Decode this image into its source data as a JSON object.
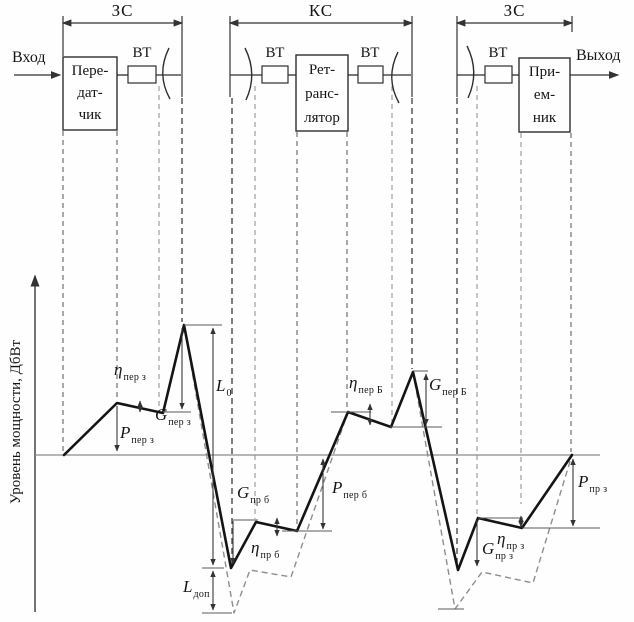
{
  "diagram": {
    "sections": {
      "left": "ЗС",
      "middle": "КС",
      "right": "ЗС"
    },
    "io": {
      "input": "Вход",
      "output": "Выход"
    },
    "waveguide_label": "ВТ",
    "blocks": {
      "transmitter": {
        "lines": [
          "Пере-",
          "дат-",
          "чик"
        ]
      },
      "repeater": {
        "lines": [
          "Рет-",
          "ранс-",
          "лятор"
        ]
      },
      "receiver": {
        "lines": [
          "При-",
          "ем-",
          "ник"
        ]
      }
    }
  },
  "chart": {
    "y_axis_label": "Уровень мощности, ДбВт",
    "labels": {
      "eta_per_z": {
        "main": "η",
        "sub": "пер з"
      },
      "p_per_z": {
        "main": "P",
        "sub": "пер з"
      },
      "g_per_z": {
        "main": "G",
        "sub": "пер з"
      },
      "l_0": {
        "main": "L",
        "sub": "0"
      },
      "l_dop": {
        "main": "L",
        "sub": "доп"
      },
      "g_pr_b": {
        "main": "G",
        "sub": "пр б"
      },
      "eta_pr_b": {
        "main": "η",
        "sub": "пр б"
      },
      "p_per_b": {
        "main": "P",
        "sub": "пер б"
      },
      "eta_per_B": {
        "main": "η",
        "sub": "пер Б"
      },
      "g_per_B": {
        "main": "G",
        "sub": "пер Б"
      },
      "g_pr_z": {
        "main": "G",
        "sub": "пр з"
      },
      "eta_pr_z": {
        "main": "η",
        "sub": "пр з"
      },
      "p_pr_z": {
        "main": "P",
        "sub": "пр з"
      }
    },
    "power_profile": {
      "solid": [
        [
          64,
          455
        ],
        [
          117,
          403
        ],
        [
          163,
          413
        ],
        [
          184,
          325
        ],
        [
          231,
          568
        ],
        [
          256,
          522
        ],
        [
          297,
          531
        ],
        [
          348,
          412
        ],
        [
          391,
          427
        ],
        [
          413,
          372
        ],
        [
          458,
          570
        ],
        [
          478,
          518
        ],
        [
          522,
          528
        ],
        [
          572,
          455
        ]
      ],
      "dashed_a": [
        [
          184,
          325
        ],
        [
          234,
          613
        ],
        [
          250,
          570
        ],
        [
          291,
          577
        ],
        [
          348,
          412
        ]
      ],
      "dashed_b": [
        [
          413,
          372
        ],
        [
          455,
          609
        ],
        [
          482,
          572
        ],
        [
          533,
          583
        ],
        [
          572,
          455
        ]
      ]
    }
  }
}
